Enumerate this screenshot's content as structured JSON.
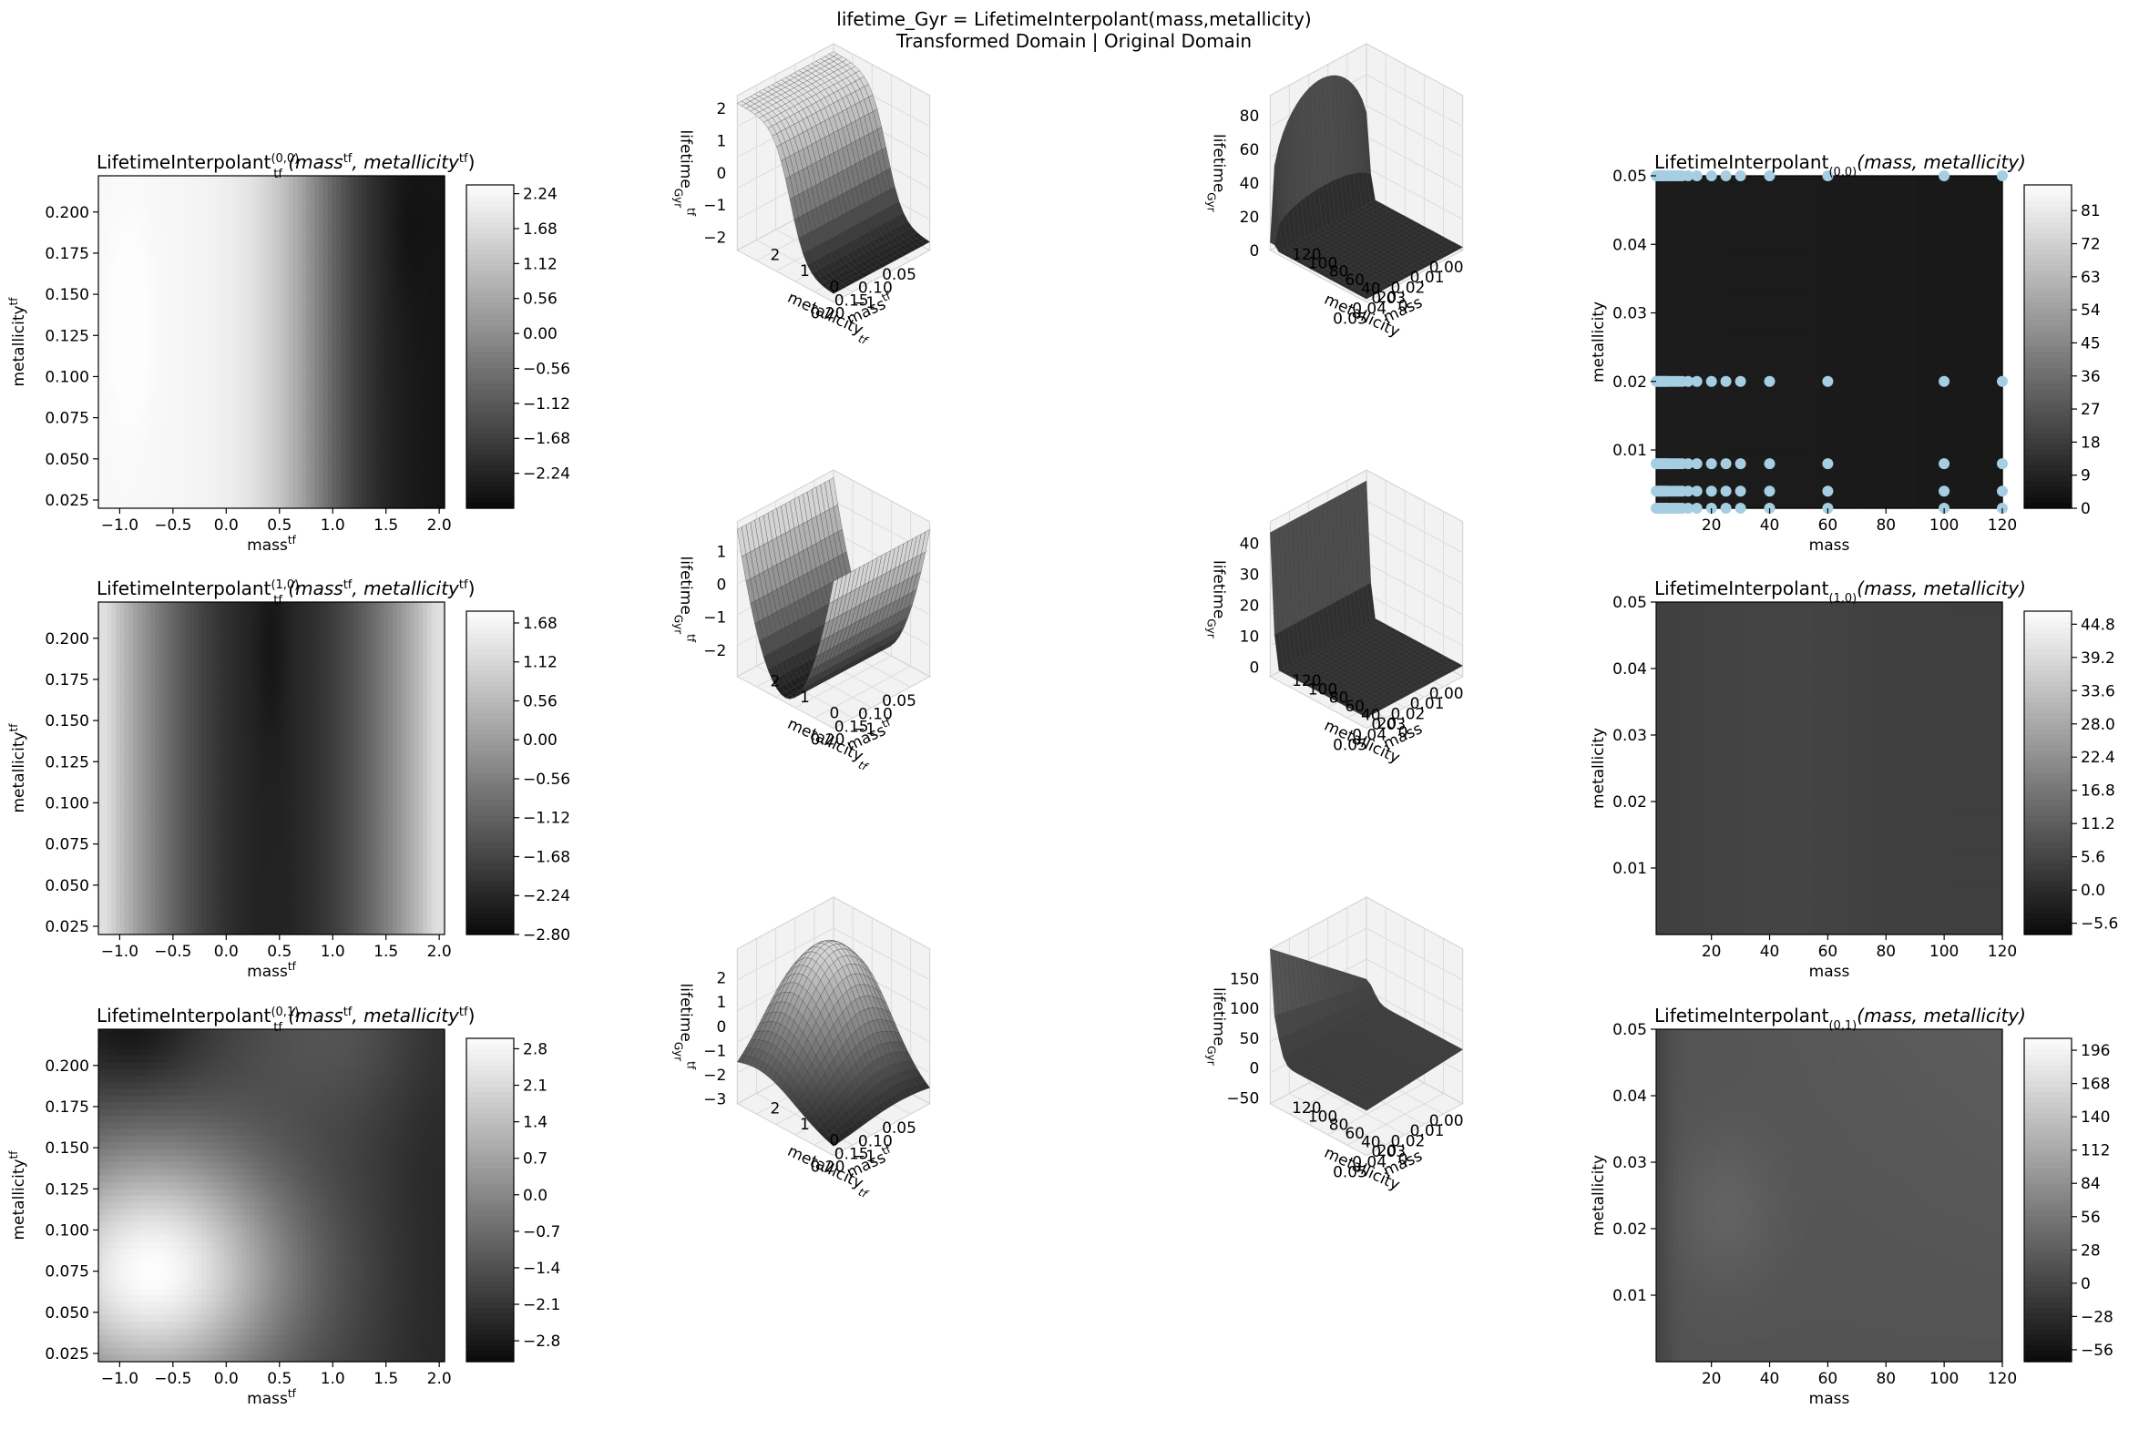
{
  "figure": {
    "title_line1": "lifetime_Gyr = LifetimeInterpolant(mass,metallicity)",
    "title_line2": "Transformed Domain | Original Domain"
  },
  "chart_data": [
    {
      "type": "heatmap",
      "row": 0,
      "panel": "contour-tf",
      "title": "LifetimeInterpolant_tf^(0,0)(mass^tf, metallicity^tf)",
      "title_parts": {
        "main": "LifetimeInterpolant",
        "sub": "tf",
        "sup": "(0,0)",
        "rest": "(mass",
        "s1": "tf",
        "mid": ", metallicity",
        "s2": "tf",
        "end": ")"
      },
      "xlabel": "mass",
      "xlabel_sup": "tf",
      "ylabel": "metallicity",
      "ylabel_sup": "tf",
      "xlim": [
        -1.2,
        2.05
      ],
      "ylim": [
        0.02,
        0.222
      ],
      "xticks": [
        "-1.0",
        "-0.5",
        "0.0",
        "0.5",
        "1.0",
        "1.5",
        "2.0"
      ],
      "yticks": [
        "0.025",
        "0.050",
        "0.075",
        "0.100",
        "0.125",
        "0.150",
        "0.175",
        "0.200"
      ],
      "colorbar": {
        "min": -2.8,
        "max": 2.38,
        "ticks": [
          "-2.24",
          "-1.68",
          "-1.12",
          "-0.56",
          "0.00",
          "0.56",
          "1.12",
          "1.68",
          "2.24"
        ]
      }
    },
    {
      "type": "surface",
      "row": 0,
      "panel": "surface-tf",
      "xlabel": "mass",
      "xlabel_sup": "tf",
      "ylabel": "metallicity",
      "ylabel_sub": "tf",
      "zlabel": "lifetime",
      "zlabel_sub": "Gyr",
      "zlabel_sup": "tf",
      "xticks": [
        "-1",
        "0",
        "1",
        "2"
      ],
      "yticks": [
        "0.05",
        "0.10",
        "0.15",
        "0.20"
      ],
      "zticks": [
        "-2",
        "-1",
        "0",
        "1",
        "2"
      ],
      "zlim": [
        -2.4,
        2.4
      ]
    },
    {
      "type": "surface",
      "row": 0,
      "panel": "surface-orig",
      "xlabel": "mass",
      "ylabel": "metallicity",
      "zlabel": "lifetime",
      "zlabel_sub": "Gyr",
      "xticks": [
        "0",
        "20",
        "40",
        "60",
        "80",
        "100",
        "120"
      ],
      "yticks": [
        "0.00",
        "0.01",
        "0.02",
        "0.03",
        "0.04",
        "0.05"
      ],
      "zticks": [
        "0",
        "20",
        "40",
        "60",
        "80"
      ],
      "zlim": [
        0,
        92
      ]
    },
    {
      "type": "heatmap",
      "row": 0,
      "panel": "contour-orig",
      "title": "LifetimeInterpolant_(0,0)(mass, metallicity)",
      "title_parts": {
        "main": "LifetimeInterpolant",
        "sub": "(0,0)",
        "rest": "(mass, metallicity)"
      },
      "xlabel": "mass",
      "ylabel": "metallicity",
      "xlim": [
        1,
        120
      ],
      "ylim": [
        0.0015,
        0.05
      ],
      "xticks": [
        "20",
        "40",
        "60",
        "80",
        "100",
        "120"
      ],
      "yticks": [
        "0.01",
        "0.02",
        "0.03",
        "0.04",
        "0.05"
      ],
      "colorbar": {
        "min": 0,
        "max": 88,
        "ticks": [
          "0",
          "9",
          "18",
          "27",
          "36",
          "45",
          "54",
          "63",
          "72",
          "81"
        ]
      },
      "scatter": {
        "color": "#a6cee3",
        "metallicity_levels": [
          0.0015,
          0.004,
          0.008,
          0.02,
          0.05
        ],
        "masses": [
          1,
          1.5,
          2,
          2.5,
          3,
          3.5,
          4,
          4.5,
          5,
          6,
          7,
          8,
          9,
          10,
          12,
          15,
          20,
          25,
          30,
          40,
          60,
          100,
          120
        ]
      }
    },
    {
      "type": "heatmap",
      "row": 1,
      "panel": "contour-tf",
      "title": "LifetimeInterpolant_tf^(1,0)(mass^tf, metallicity^tf)",
      "title_parts": {
        "main": "LifetimeInterpolant",
        "sub": "tf",
        "sup": "(1,0)",
        "rest": "(mass",
        "s1": "tf",
        "mid": ", metallicity",
        "s2": "tf",
        "end": ")"
      },
      "xlabel": "mass",
      "xlabel_sup": "tf",
      "ylabel": "metallicity",
      "ylabel_sup": "tf",
      "xlim": [
        -1.2,
        2.05
      ],
      "ylim": [
        0.02,
        0.222
      ],
      "xticks": [
        "-1.0",
        "-0.5",
        "0.0",
        "0.5",
        "1.0",
        "1.5",
        "2.0"
      ],
      "yticks": [
        "0.025",
        "0.050",
        "0.075",
        "0.100",
        "0.125",
        "0.150",
        "0.175",
        "0.200"
      ],
      "colorbar": {
        "min": -2.8,
        "max": 1.85,
        "ticks": [
          "-2.80",
          "-2.24",
          "-1.68",
          "-1.12",
          "-0.56",
          "0.00",
          "0.56",
          "1.12",
          "1.68"
        ]
      }
    },
    {
      "type": "surface",
      "row": 1,
      "panel": "surface-tf",
      "xlabel": "mass",
      "xlabel_sup": "tf",
      "ylabel": "metallicity",
      "ylabel_sub": "tf",
      "zlabel": "lifetime",
      "zlabel_sub": "Gyr",
      "zlabel_sup": "tf",
      "xticks": [
        "-1",
        "0",
        "1",
        "2"
      ],
      "yticks": [
        "0.05",
        "0.10",
        "0.15",
        "0.20"
      ],
      "zticks": [
        "-2",
        "-1",
        "0",
        "1"
      ],
      "zlim": [
        -2.8,
        1.9
      ]
    },
    {
      "type": "surface",
      "row": 1,
      "panel": "surface-orig",
      "xlabel": "mass",
      "ylabel": "metallicity",
      "zlabel": "lifetime",
      "zlabel_sub": "Gyr",
      "xticks": [
        "0",
        "20",
        "40",
        "60",
        "80",
        "100",
        "120"
      ],
      "yticks": [
        "0.00",
        "0.01",
        "0.02",
        "0.03",
        "0.04",
        "0.05"
      ],
      "zticks": [
        "0",
        "10",
        "20",
        "30",
        "40"
      ],
      "zlim": [
        -3,
        47
      ]
    },
    {
      "type": "heatmap",
      "row": 1,
      "panel": "contour-orig",
      "title": "LifetimeInterpolant_(1,0)(mass, metallicity)",
      "title_parts": {
        "main": "LifetimeInterpolant",
        "sub": "(1,0)",
        "rest": "(mass, metallicity)"
      },
      "xlabel": "mass",
      "ylabel": "metallicity",
      "xlim": [
        1,
        120
      ],
      "ylim": [
        0.0,
        0.05
      ],
      "xticks": [
        "20",
        "40",
        "60",
        "80",
        "100",
        "120"
      ],
      "yticks": [
        "0.01",
        "0.02",
        "0.03",
        "0.04",
        "0.05"
      ],
      "colorbar": {
        "min": -7.5,
        "max": 47,
        "ticks": [
          "-5.6",
          "0.0",
          "5.6",
          "11.2",
          "16.8",
          "22.4",
          "28.0",
          "33.6",
          "39.2",
          "44.8"
        ]
      }
    },
    {
      "type": "heatmap",
      "row": 2,
      "panel": "contour-tf",
      "title": "LifetimeInterpolant_tf^(0,1)(mass^tf, metallicity^tf)",
      "title_parts": {
        "main": "LifetimeInterpolant",
        "sub": "tf",
        "sup": "(0,1)",
        "rest": "(mass",
        "s1": "tf",
        "mid": ", metallicity",
        "s2": "tf",
        "end": ")"
      },
      "xlabel": "mass",
      "xlabel_sup": "tf",
      "ylabel": "metallicity",
      "ylabel_sup": "tf",
      "xlim": [
        -1.2,
        2.05
      ],
      "ylim": [
        0.02,
        0.222
      ],
      "xticks": [
        "-1.0",
        "-0.5",
        "0.0",
        "0.5",
        "1.0",
        "1.5",
        "2.0"
      ],
      "yticks": [
        "0.025",
        "0.050",
        "0.075",
        "0.100",
        "0.125",
        "0.150",
        "0.175",
        "0.200"
      ],
      "colorbar": {
        "min": -3.2,
        "max": 3.0,
        "ticks": [
          "-2.8",
          "-2.1",
          "-1.4",
          "-0.7",
          "0.0",
          "0.7",
          "1.4",
          "2.1",
          "2.8"
        ]
      }
    },
    {
      "type": "surface",
      "row": 2,
      "panel": "surface-tf",
      "xlabel": "mass",
      "xlabel_sup": "tf",
      "ylabel": "metallicity",
      "ylabel_sub": "tf",
      "zlabel": "lifetime",
      "zlabel_sub": "Gyr",
      "zlabel_sup": "tf",
      "xticks": [
        "-1",
        "0",
        "1",
        "2"
      ],
      "yticks": [
        "0.05",
        "0.10",
        "0.15",
        "0.20"
      ],
      "zticks": [
        "-3",
        "-2",
        "-1",
        "0",
        "1",
        "2"
      ],
      "zlim": [
        -3.2,
        3.2
      ]
    },
    {
      "type": "surface",
      "row": 2,
      "panel": "surface-orig",
      "xlabel": "mass",
      "ylabel": "metallicity",
      "zlabel": "lifetime",
      "zlabel_sub": "Gyr",
      "xticks": [
        "0",
        "20",
        "40",
        "60",
        "80",
        "100",
        "120"
      ],
      "yticks": [
        "0.00",
        "0.01",
        "0.02",
        "0.03",
        "0.04",
        "0.05"
      ],
      "zticks": [
        "-50",
        "0",
        "50",
        "100",
        "150"
      ],
      "zlim": [
        -60,
        200
      ]
    },
    {
      "type": "heatmap",
      "row": 2,
      "panel": "contour-orig",
      "title": "LifetimeInterpolant_(0,1)(mass, metallicity)",
      "title_parts": {
        "main": "LifetimeInterpolant",
        "sub": "(0,1)",
        "rest": "(mass, metallicity)"
      },
      "xlabel": "mass",
      "ylabel": "metallicity",
      "xlim": [
        1,
        120
      ],
      "ylim": [
        0.0,
        0.05
      ],
      "xticks": [
        "20",
        "40",
        "60",
        "80",
        "100",
        "120"
      ],
      "yticks": [
        "0.01",
        "0.02",
        "0.03",
        "0.04",
        "0.05"
      ],
      "colorbar": {
        "min": -66,
        "max": 206,
        "ticks": [
          "-56",
          "-28",
          "0",
          "28",
          "56",
          "84",
          "112",
          "140",
          "168",
          "196"
        ]
      }
    }
  ]
}
